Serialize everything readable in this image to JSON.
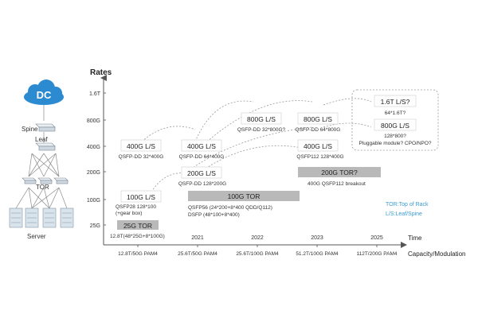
{
  "topology": {
    "dc": "DC",
    "spine": "Spine",
    "leaf": "Leaf",
    "tor": "TOR",
    "server": "Server"
  },
  "axes": {
    "y_title": "Rates",
    "x_title": "Time",
    "x_subtitle": "Capacity/Modulation",
    "rates": [
      "1.6T",
      "800G",
      "400G",
      "200G",
      "100G",
      "25G"
    ],
    "years": [
      "2021",
      "2022",
      "2023",
      "2025"
    ],
    "capacities": [
      "12.8T/50G PAM4",
      "25.6T/50G PAM4",
      "25.6T/100G PAM4",
      "51.2T/100G PAM4",
      "112T/200G PAM4"
    ]
  },
  "boxes": {
    "b1": {
      "title": "400G L/S",
      "sub": "QSFP-DD 32*400G"
    },
    "b2": {
      "title": "400G L/S",
      "sub": "QSFP-DD 64*400G"
    },
    "b3": {
      "title": "800G L/S",
      "sub": "QSFP-DD 32*800G?"
    },
    "b4": {
      "title": "800G L/S",
      "sub": "QSFP-DD 64*800G"
    },
    "b5": {
      "title": "400G L/S",
      "sub": "QSFP112 128*400G"
    },
    "b6": {
      "title": "200G L/S",
      "sub": "QSFP-DD 128*200G"
    },
    "b7": {
      "title": "100G L/S",
      "sub1": "QSFP28 128*100",
      "sub2": "(+gear box)"
    },
    "b8": {
      "title": "25G TOR",
      "sub": "12.8T(48*25G+8*100G)"
    },
    "b9": {
      "title": "100G TOR",
      "sub1": "QSFP56 (24*200+8*400 QDD/Q112)",
      "sub2": "DSFP (48*100+8*400)"
    },
    "b10": {
      "title": "200G TOR?",
      "sub": "400G QSFP112 breakout"
    },
    "future": {
      "t1": "1.6T L/S?",
      "s1": "64*1.6T?",
      "t2": "800G L/S",
      "s2": "128*800?",
      "s3": "Pluggable module? CPO/NPO?"
    }
  },
  "legend": {
    "line1": "TOR:Top of Rack",
    "line2": "L/S:Leaf/Spine"
  },
  "colors": {
    "blue": "#2a86c8",
    "legend": "#3b9bd0",
    "gray_bar": "#b9b9b9",
    "axis": "#555555"
  }
}
